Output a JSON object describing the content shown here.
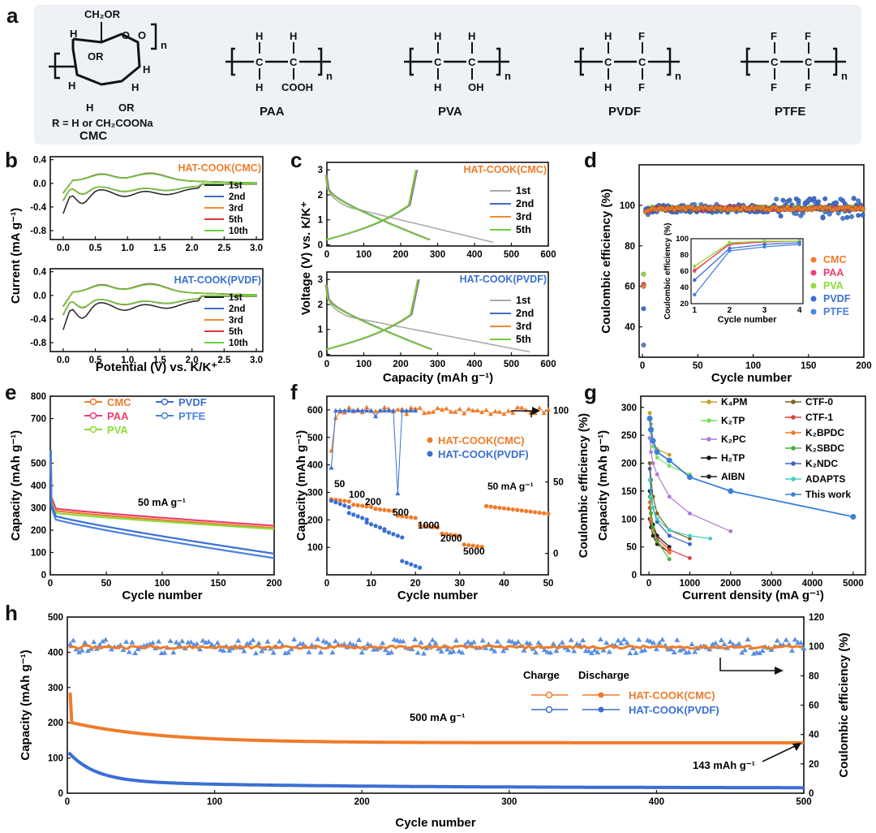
{
  "panels": {
    "a": "a",
    "b": "b",
    "c": "c",
    "d": "d",
    "e": "e",
    "f": "f",
    "g": "g",
    "h": "h"
  },
  "structures": {
    "cmc": {
      "name": "CMC",
      "r_group": "R = H or CH₂COONa",
      "ch2or": "CH₂OR",
      "or": "OR",
      "h": "H",
      "o": "O",
      "n": "n"
    },
    "paa": {
      "name": "PAA",
      "h": "H",
      "c": "C",
      "sub": "COOH",
      "n": "n"
    },
    "pva": {
      "name": "PVA",
      "h": "H",
      "c": "C",
      "sub": "OH",
      "n": "n"
    },
    "pvdf": {
      "name": "PVDF",
      "h": "H",
      "c": "C",
      "f": "F",
      "n": "n"
    },
    "ptfe": {
      "name": "PTFE",
      "c": "C",
      "f": "F",
      "n": "n"
    }
  },
  "colors": {
    "cmc": "#f07b2a",
    "paa": "#e8416a",
    "pva": "#8ddc3a",
    "pvdf": "#3a6fd4",
    "ptfe": "#4a80e0",
    "c1st": "#aaaaaa",
    "c2nd": "#3f6bc8",
    "c3rd": "#f08a30",
    "c5th": "#e0303a",
    "c10th": "#6ad03a",
    "black": "#222222"
  },
  "chart_data": [
    {
      "id": "b_top",
      "type": "line",
      "title": "HAT-COOK(CMC)",
      "xlabel": "Potential (V) vs. K/K⁺",
      "ylabel": "Current (mA g⁻¹)",
      "xlim": [
        -0.2,
        3.1
      ],
      "ylim": [
        -0.95,
        0.45
      ],
      "xticks": [
        "0.0",
        "0.5",
        "1.0",
        "1.5",
        "2.0",
        "2.5",
        "3.0"
      ],
      "yticks": [
        "0.4",
        "0.0",
        "-0.4",
        "-0.8"
      ],
      "legend": [
        "1st",
        "2nd",
        "3rd",
        "5th",
        "10th"
      ],
      "cv_scale": 0.95,
      "series": [
        {
          "name": "1st"
        },
        {
          "name": "2nd"
        },
        {
          "name": "3rd"
        },
        {
          "name": "5th"
        },
        {
          "name": "10th"
        }
      ]
    },
    {
      "id": "b_bottom",
      "type": "line",
      "title": "HAT-COOK(PVDF)",
      "xlabel": "Potential (V) vs. K/K⁺",
      "ylabel": "Current (mA g⁻¹)",
      "xlim": [
        -0.2,
        3.1
      ],
      "ylim": [
        -0.95,
        0.45
      ],
      "xticks": [
        "0.0",
        "0.5",
        "1.0",
        "1.5",
        "2.0",
        "2.5",
        "3.0"
      ],
      "yticks": [
        "0.4",
        "0.0",
        "-0.4",
        "-0.8"
      ],
      "legend": [
        "1st",
        "2nd",
        "3rd",
        "5th",
        "10th"
      ],
      "cv_scale": 1.2,
      "series": [
        {
          "name": "1st"
        },
        {
          "name": "2nd"
        },
        {
          "name": "3rd"
        },
        {
          "name": "5th"
        },
        {
          "name": "10th"
        }
      ]
    },
    {
      "id": "c_top",
      "type": "line",
      "title": "HAT-COOK(CMC)",
      "xlabel": "Capacity (mAh g⁻¹)",
      "ylabel": "Voltage (V) vs. K/K⁺",
      "xlim": [
        0,
        600
      ],
      "ylim": [
        -0.05,
        3.3
      ],
      "xticks": [
        "0",
        "100",
        "200",
        "300",
        "400",
        "500",
        "600"
      ],
      "yticks": [
        "0",
        "1",
        "2",
        "3"
      ],
      "legend": [
        "1st",
        "2nd",
        "3rd",
        "5th"
      ],
      "first_discharge_end": 450,
      "discharge_end": 280,
      "charge_end": 245
    },
    {
      "id": "c_bottom",
      "type": "line",
      "title": "HAT-COOK(PVDF)",
      "xlabel": "Capacity (mAh g⁻¹)",
      "ylabel": "Voltage (V) vs. K/K⁺",
      "xlim": [
        0,
        600
      ],
      "ylim": [
        -0.05,
        3.3
      ],
      "xticks": [
        "0",
        "100",
        "200",
        "300",
        "400",
        "500",
        "600"
      ],
      "yticks": [
        "0",
        "1",
        "2",
        "3"
      ],
      "legend": [
        "1st",
        "2nd",
        "3rd",
        "5th"
      ],
      "first_discharge_end": 550,
      "discharge_end": 285,
      "charge_end": 250
    },
    {
      "id": "d",
      "type": "scatter",
      "xlabel": "Cycle number",
      "ylabel": "Coulombic efficiency (%)",
      "xlim": [
        -3,
        200
      ],
      "ylim": [
        25,
        120
      ],
      "xticks": [
        "0",
        "50",
        "100",
        "150",
        "200"
      ],
      "yticks": [
        "40",
        "60",
        "80",
        "100"
      ],
      "legend": [
        "CMC",
        "PAA",
        "PVA",
        "PVDF",
        "PTFE"
      ],
      "first_cycle": {
        "CMC": 60,
        "PAA": 61,
        "PVA": 66,
        "PVDF": 49,
        "PTFE": 31
      },
      "inset": {
        "xlabel": "Cycle number",
        "ylabel": "Coulombic efficiency (%)",
        "x": [
          1,
          2,
          3,
          4
        ],
        "xticks": [
          "1",
          "2",
          "3",
          "4"
        ],
        "yticks": [
          "20",
          "40",
          "60",
          "80",
          "100"
        ],
        "series": [
          {
            "name": "CMC",
            "values": [
              60,
              94,
              96,
              97
            ]
          },
          {
            "name": "PAA",
            "values": [
              61,
              93,
              96,
              97
            ]
          },
          {
            "name": "PVA",
            "values": [
              66,
              95,
              97,
              97
            ]
          },
          {
            "name": "PVDF",
            "values": [
              49,
              88,
              93,
              95
            ]
          },
          {
            "name": "PTFE",
            "values": [
              31,
              85,
              90,
              93
            ]
          }
        ]
      }
    },
    {
      "id": "e",
      "type": "line",
      "xlabel": "Cycle number",
      "ylabel": "Capacity (mAh g⁻¹)",
      "annotation": "50 mA g⁻¹",
      "xlim": [
        0,
        200
      ],
      "ylim": [
        0,
        800
      ],
      "xticks": [
        "0",
        "50",
        "100",
        "150",
        "200"
      ],
      "yticks": [
        "0",
        "100",
        "200",
        "300",
        "400",
        "500",
        "700",
        "800"
      ],
      "legend": [
        "CMC",
        "PAA",
        "PVA",
        "PVDF",
        "PTFE"
      ],
      "series": [
        {
          "name": "CMC",
          "start": 290,
          "end": 210
        },
        {
          "name": "PAA",
          "start": 300,
          "end": 220
        },
        {
          "name": "PVA",
          "start": 280,
          "end": 205
        },
        {
          "name": "PVDF",
          "start": 270,
          "end": 95
        },
        {
          "name": "PTFE",
          "start": 255,
          "end": 75
        }
      ]
    },
    {
      "id": "f",
      "type": "scatter",
      "xlabel": "Cycle number",
      "ylabel": "Capacity (mAh g⁻¹)",
      "y2label": "Coulombic efficiency (%)",
      "xlim": [
        0,
        50
      ],
      "ylim": [
        0,
        650
      ],
      "y2lim": [
        -15,
        110
      ],
      "xticks": [
        "0",
        "10",
        "20",
        "30",
        "40",
        "50"
      ],
      "yticks": [
        "100",
        "200",
        "300",
        "400",
        "500",
        "600"
      ],
      "y2ticks": [
        "0",
        "50",
        "100"
      ],
      "legend": [
        "HAT-COOK(CMC)",
        "HAT-COOK(PVDF)"
      ],
      "rate_labels": [
        "50",
        "100",
        "200",
        "500",
        "1000",
        "2000",
        "5000",
        "50 mA g⁻¹"
      ],
      "cmc_rate_capacity": [
        275,
        255,
        240,
        215,
        180,
        150,
        110,
        250
      ],
      "pvdf_rate_capacity": [
        270,
        225,
        190,
        160,
        50
      ]
    },
    {
      "id": "g",
      "type": "line",
      "xlabel": "Current density (mA g⁻¹)",
      "ylabel": "Capacity (mAh g⁻¹)",
      "xlim": [
        -200,
        5300
      ],
      "ylim": [
        0,
        320
      ],
      "xticks": [
        "0",
        "1000",
        "2000",
        "3000",
        "4000",
        "5000"
      ],
      "yticks": [
        "0",
        "50",
        "100",
        "150",
        "200",
        "250",
        "300"
      ],
      "legend_left": [
        "K₄PM",
        "K₂TP",
        "K₂PC",
        "H₂TP",
        "AIBN"
      ],
      "legend_right": [
        "CTF-0",
        "CTF-1",
        "K₂BPDC",
        "K₂SBDC",
        "K₂NDC",
        "ADAPTS",
        "This work"
      ],
      "series": [
        {
          "name": "K₄PM",
          "x": [
            20,
            50,
            100,
            200,
            500
          ],
          "y": [
            290,
            270,
            240,
            225,
            215
          ]
        },
        {
          "name": "K₂TP",
          "x": [
            20,
            50,
            100,
            200,
            500,
            1000
          ],
          "y": [
            260,
            245,
            230,
            210,
            195,
            180
          ]
        },
        {
          "name": "K₂PC",
          "x": [
            20,
            50,
            100,
            200,
            500,
            1000,
            2000
          ],
          "y": [
            245,
            220,
            200,
            180,
            140,
            110,
            78
          ]
        },
        {
          "name": "H₂TP",
          "x": [
            20,
            50,
            100,
            200,
            500
          ],
          "y": [
            150,
            110,
            90,
            70,
            50
          ]
        },
        {
          "name": "AIBN",
          "x": [
            20,
            50,
            100,
            200,
            500
          ],
          "y": [
            100,
            85,
            70,
            55,
            40
          ]
        },
        {
          "name": "CTF-0",
          "x": [
            20,
            50,
            100,
            200,
            500,
            1000
          ],
          "y": [
            200,
            170,
            140,
            110,
            80,
            65
          ]
        },
        {
          "name": "CTF-1",
          "x": [
            20,
            50,
            100,
            200,
            500,
            1000
          ],
          "y": [
            120,
            95,
            80,
            65,
            45,
            30
          ]
        },
        {
          "name": "K₂BPDC",
          "x": [
            20,
            50,
            100,
            200,
            500
          ],
          "y": [
            130,
            100,
            80,
            60,
            40
          ]
        },
        {
          "name": "K₂SBDC",
          "x": [
            20,
            50,
            100,
            200,
            500
          ],
          "y": [
            140,
            110,
            85,
            60,
            28
          ]
        },
        {
          "name": "K₂NDC",
          "x": [
            20,
            50,
            100,
            200,
            500,
            1000
          ],
          "y": [
            190,
            150,
            120,
            95,
            70,
            55
          ]
        },
        {
          "name": "ADAPTS",
          "x": [
            20,
            50,
            100,
            200,
            500,
            1000,
            1500
          ],
          "y": [
            170,
            140,
            120,
            100,
            80,
            70,
            65
          ]
        },
        {
          "name": "This work",
          "x": [
            20,
            50,
            100,
            200,
            500,
            1000,
            2000,
            5000
          ],
          "y": [
            280,
            260,
            240,
            220,
            205,
            175,
            150,
            104
          ]
        }
      ]
    },
    {
      "id": "h",
      "type": "scatter",
      "xlabel": "Cycle number",
      "ylabel": "Capacity (mAh g⁻¹)",
      "y2label": "Coulombic efficiency (%)",
      "xlim": [
        0,
        500
      ],
      "ylim": [
        0,
        500
      ],
      "y2lim": [
        0,
        120
      ],
      "xticks": [
        "0",
        "100",
        "200",
        "300",
        "400",
        "500"
      ],
      "yticks": [
        "0",
        "100",
        "200",
        "300",
        "400",
        "500"
      ],
      "y2ticks": [
        "0",
        "20",
        "40",
        "60",
        "80",
        "100",
        "120"
      ],
      "legend_header_charge": "Charge",
      "legend_header_discharge": "Discharge",
      "legend": [
        "HAT-COOK(CMC)",
        "HAT-COOK(PVDF)"
      ],
      "annotation_rate": "500 mA g⁻¹",
      "annotation_final": "143 mAh g⁻¹",
      "cmc_final_capacity": 143,
      "cmc_start_capacity": 210,
      "pvdf_start_capacity": 100,
      "pvdf_final_capacity": 15
    }
  ]
}
